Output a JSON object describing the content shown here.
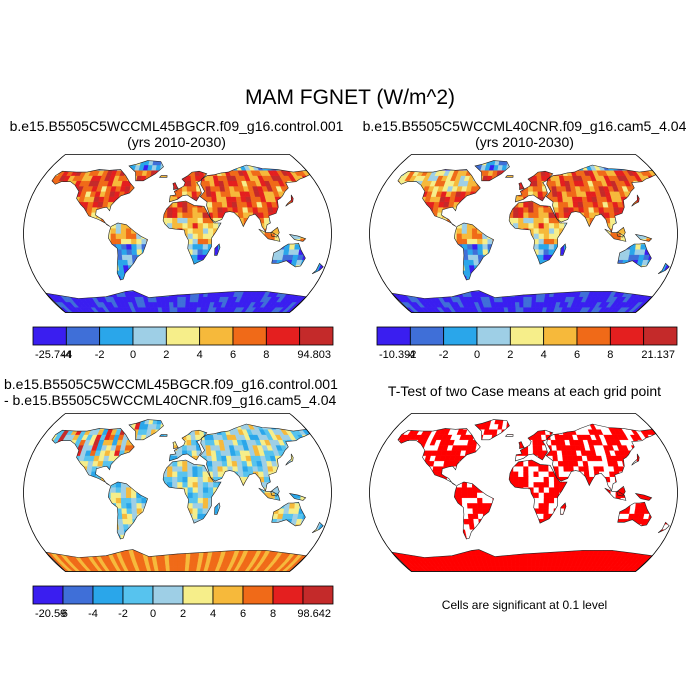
{
  "figure": {
    "title": "MAM FGNET (W/m^2)"
  },
  "panels": [
    {
      "id": "p1",
      "title_line1": "b.e15.B5505C5WCCML45BGCR.f09_g16.control.001",
      "title_line2": "(yrs 2010-2030)",
      "colorbar": {
        "labels": [
          "-25.744",
          "-4",
          "-2",
          "0",
          "2",
          "4",
          "6",
          "8",
          "94.803"
        ],
        "colors": [
          "#3a1ef0",
          "#3f6fd8",
          "#2aa6ea",
          "#9ecfe6",
          "#f6ee8a",
          "#f6b93b",
          "#f06a18",
          "#e41f1f",
          "#c42a2a"
        ]
      }
    },
    {
      "id": "p2",
      "title_line1": "b.e15.B5505C5WCCML40CNR.f09_g16.cam5_4.04",
      "title_line2": "(yrs 2010-2030)",
      "colorbar": {
        "labels": [
          "-10.392",
          "-4",
          "-2",
          "0",
          "2",
          "4",
          "6",
          "8",
          "21.137"
        ],
        "colors": [
          "#3a1ef0",
          "#3f6fd8",
          "#2aa6ea",
          "#9ecfe6",
          "#f6ee8a",
          "#f6b93b",
          "#f06a18",
          "#e41f1f",
          "#c42a2a"
        ]
      }
    },
    {
      "id": "p3",
      "title_line1": "b.e15.B5505C5WCCML45BGCR.f09_g16.control.001",
      "title_line2": "- b.e15.B5505C5WCCML40CNR.f09_g16.cam5_4.04",
      "colorbar": {
        "labels": [
          "-20.59",
          "-6",
          "-4",
          "-2",
          "0",
          "2",
          "4",
          "6",
          "8",
          "98.642"
        ],
        "colors": [
          "#3a1ef0",
          "#3f6fd8",
          "#2aa6ea",
          "#57c3ee",
          "#9ecfe6",
          "#f6ee8a",
          "#f6b93b",
          "#f06a18",
          "#e41f1f",
          "#c42a2a"
        ]
      }
    },
    {
      "id": "p4",
      "title_line1": "T-Test of two Case means at each grid point",
      "footnote": "Cells are significant at 0.1 level"
    }
  ],
  "colors": {
    "land_outline": "#222222",
    "significance": "#ff0000"
  }
}
